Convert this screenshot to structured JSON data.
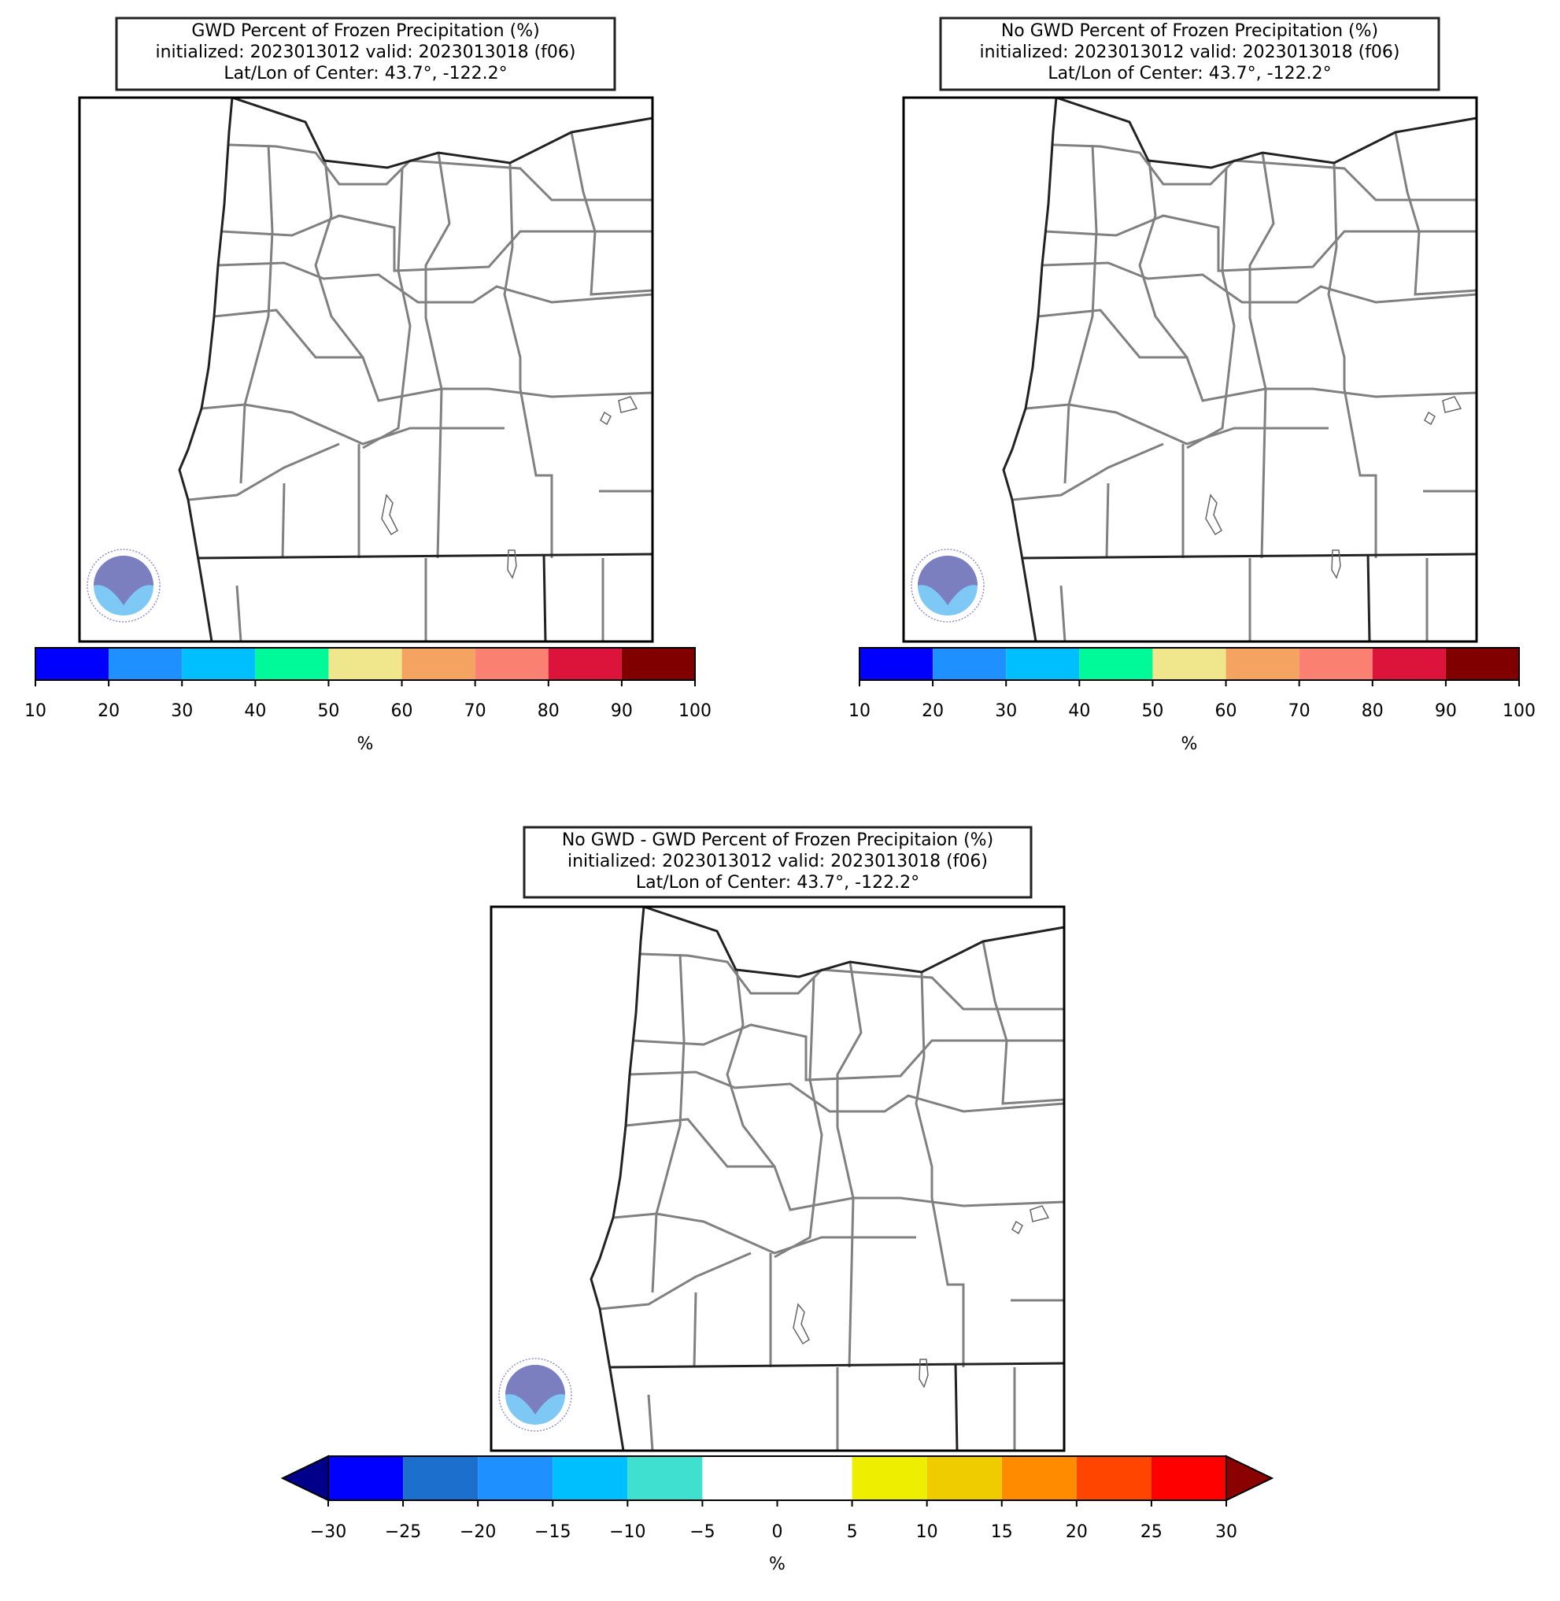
{
  "panels": [
    {
      "title_lines": [
        "GWD Percent of Frozen Precipitation (%)",
        "initialized: 2023013012 valid: 2023013018 (f06)",
        "Lat/Lon of Center: 43.7°, -122.2°"
      ],
      "colorbar": {
        "label": "%",
        "ticks": [
          10,
          20,
          30,
          40,
          50,
          60,
          70,
          80,
          90,
          100
        ],
        "colors": [
          "#0000ff",
          "#1e90ff",
          "#00bfff",
          "#00fa9a",
          "#f0e68c",
          "#f4a460",
          "#fa8072",
          "#dc143c",
          "#800000"
        ]
      }
    },
    {
      "title_lines": [
        "No GWD Percent of Frozen Precipitation (%)",
        "initialized: 2023013012 valid: 2023013018 (f06)",
        "Lat/Lon of Center: 43.7°, -122.2°"
      ],
      "colorbar": {
        "label": "%",
        "ticks": [
          10,
          20,
          30,
          40,
          50,
          60,
          70,
          80,
          90,
          100
        ],
        "colors": [
          "#0000ff",
          "#1e90ff",
          "#00bfff",
          "#00fa9a",
          "#f0e68c",
          "#f4a460",
          "#fa8072",
          "#dc143c",
          "#800000"
        ]
      }
    },
    {
      "title_lines": [
        "No GWD - GWD Percent of Frozen Precipitaion (%)",
        "initialized: 2023013012 valid: 2023013018 (f06)",
        "Lat/Lon of Center: 43.7°, -122.2°"
      ],
      "colorbar": {
        "label": "%",
        "ticks": [
          {
            "value": -30,
            "label": "−30"
          },
          {
            "value": -25,
            "label": "−25"
          },
          {
            "value": -20,
            "label": "−20"
          },
          {
            "value": -15,
            "label": "−15"
          },
          {
            "value": -10,
            "label": "−10"
          },
          {
            "value": -5,
            "label": "−5"
          },
          0,
          5,
          10,
          15,
          20,
          25,
          30
        ],
        "colors": [
          "#0000ff",
          "#1c6fcc",
          "#1e90ff",
          "#00bfff",
          "#40e0d0",
          "#ffffff",
          "#ffffff",
          "#eeee00",
          "#eecc00",
          "#ff8c00",
          "#ff4500",
          "#ff0000"
        ],
        "under_color": "#00008b",
        "over_color": "#8b0000"
      }
    }
  ]
}
